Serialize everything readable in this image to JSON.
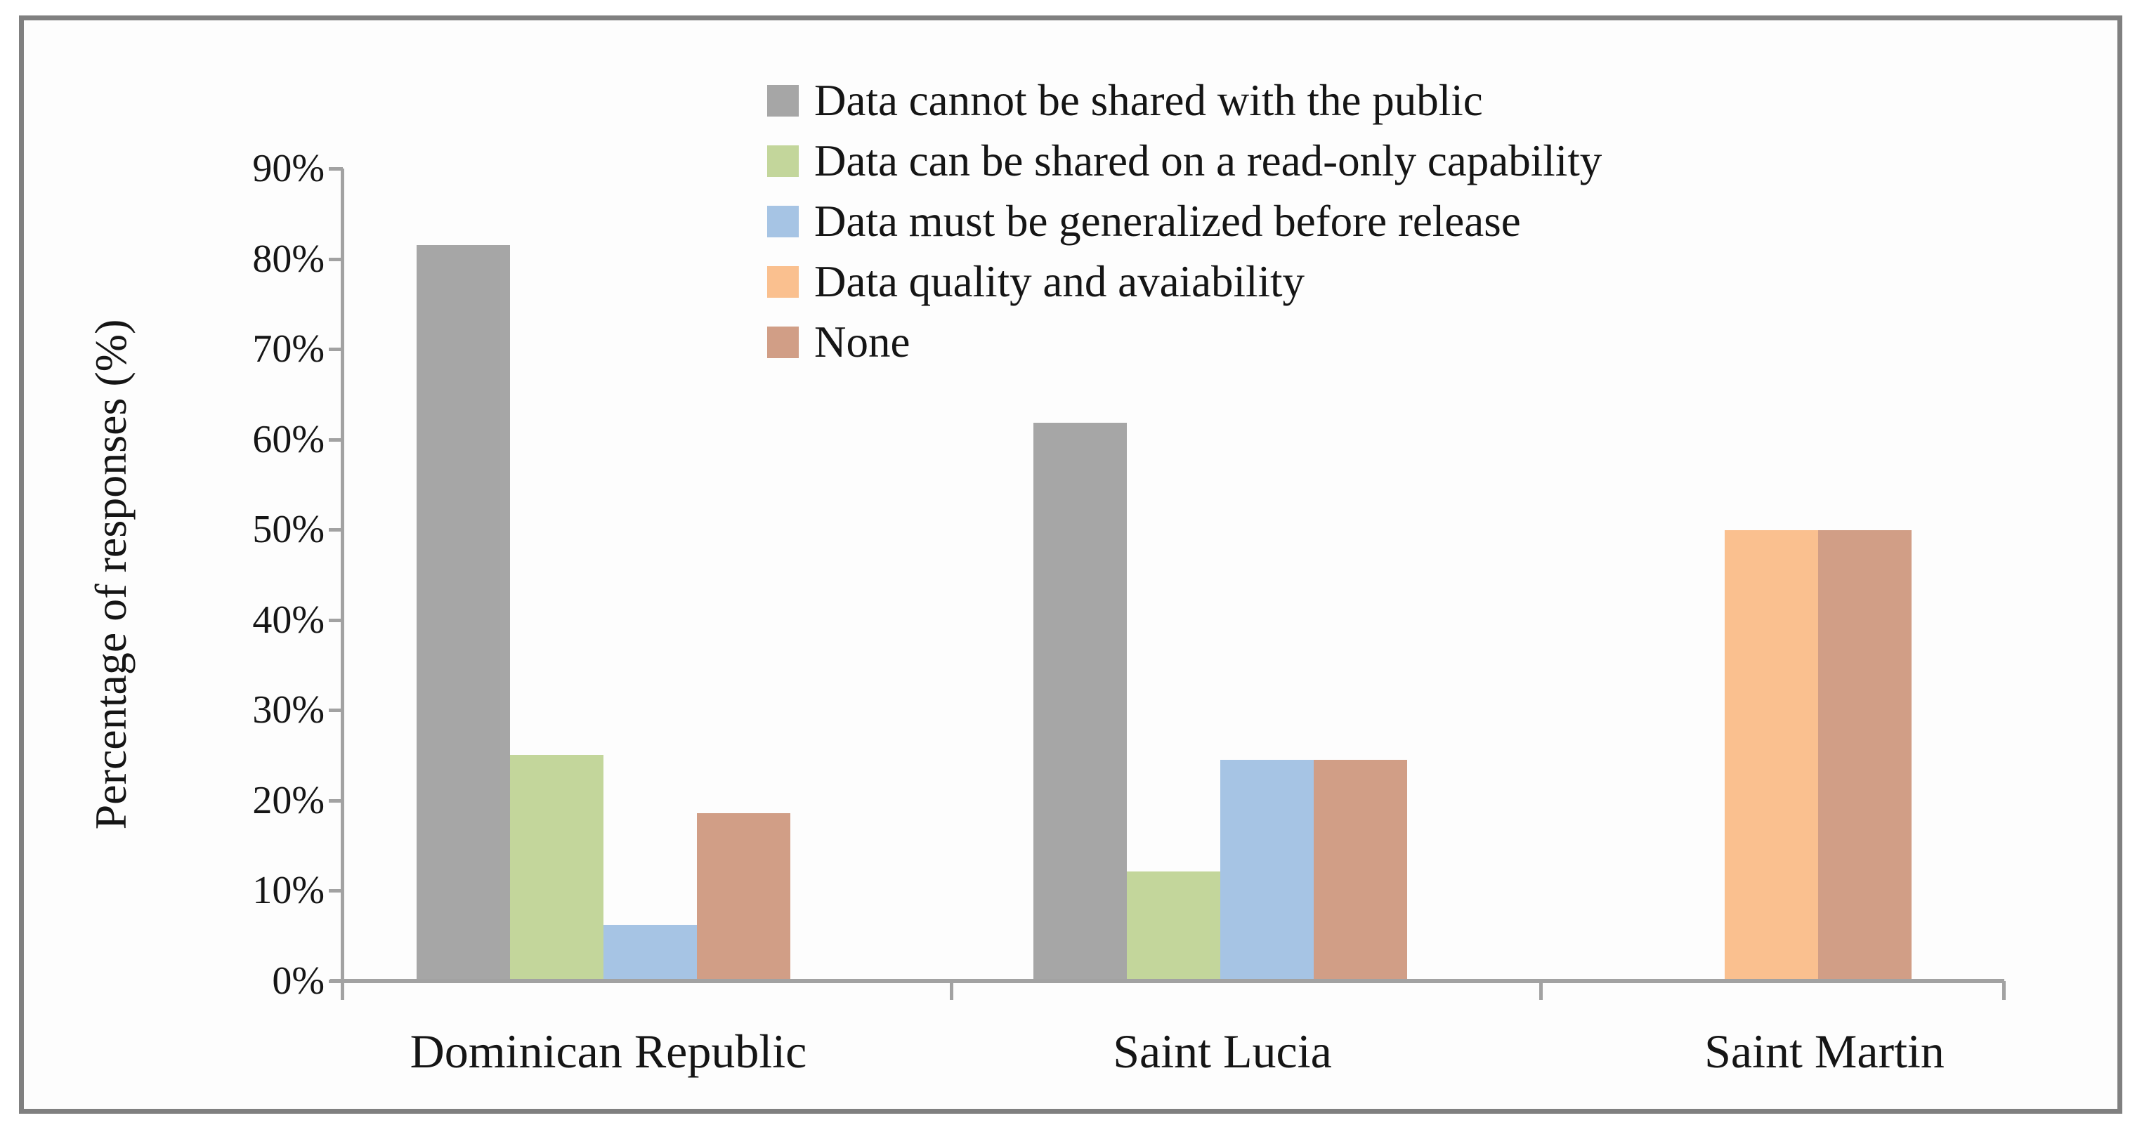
{
  "chart_data": {
    "type": "bar",
    "title": "",
    "xlabel": "",
    "ylabel": "Percentage of responses (%)",
    "ylim": [
      0,
      90
    ],
    "ytick_step": 10,
    "ytick_labels": [
      "0%",
      "10%",
      "20%",
      "30%",
      "40%",
      "50%",
      "60%",
      "70%",
      "80%",
      "90%"
    ],
    "grid": false,
    "legend_position": "inside-top-center",
    "categories": [
      "Dominican Republic",
      "Saint Lucia",
      "Saint Martin"
    ],
    "series": [
      {
        "name": "Data cannot be shared with the public",
        "color": "#a6a6a6",
        "values": [
          81.6,
          61.9,
          0
        ]
      },
      {
        "name": "Data can be shared on a read-only capability",
        "color": "#c3d69b",
        "values": [
          25.1,
          12.2,
          0
        ]
      },
      {
        "name": "Data must be generalized before release",
        "color": "#a6c4e4",
        "values": [
          6.3,
          24.6,
          0
        ]
      },
      {
        "name": "Data quality and avaiability",
        "color": "#fac08f",
        "values": [
          0,
          0,
          50
        ]
      },
      {
        "name": "None",
        "color": "#d19e86",
        "values": [
          18.7,
          24.6,
          50
        ]
      }
    ],
    "notes": "zero-value bars are not drawn; remaining bars are adjacent and centered on the category",
    "frame_color": "#808080",
    "axis_color": "#a2a2a2"
  }
}
